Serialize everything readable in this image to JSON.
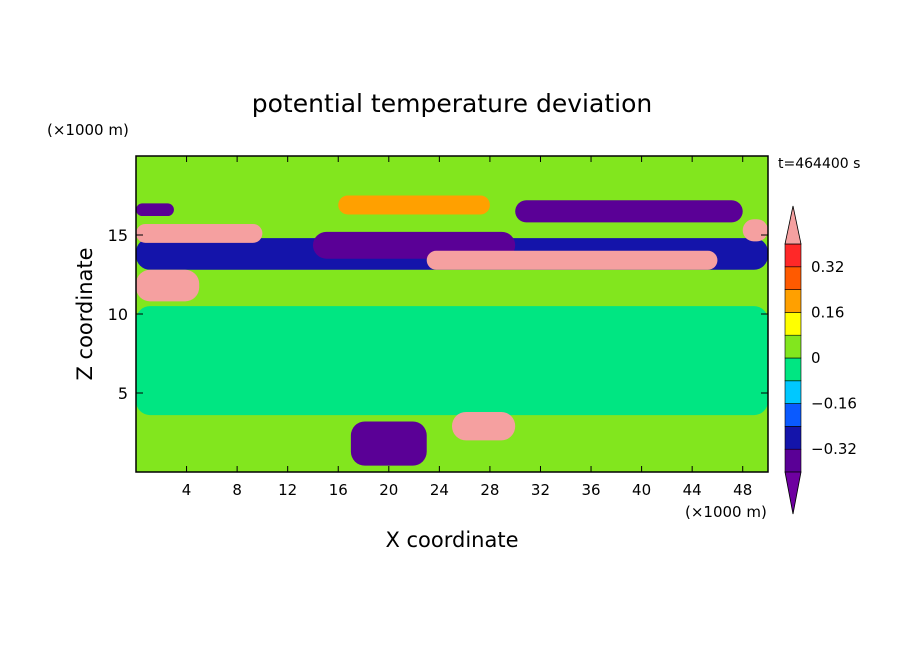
{
  "chart_data": {
    "type": "heatmap",
    "title": "potential temperature deviation",
    "time_label": "t=464400 s",
    "xlabel": "X coordinate",
    "ylabel": "Z coordinate",
    "x_unit": "(×1000 m)",
    "y_unit": "(×1000 m)",
    "xlim": [
      0,
      50
    ],
    "ylim": [
      0,
      20
    ],
    "x_ticks": [
      "4",
      "8",
      "12",
      "16",
      "20",
      "24",
      "28",
      "32",
      "36",
      "40",
      "44",
      "48"
    ],
    "y_ticks": [
      "5",
      "10",
      "15"
    ],
    "colorbar": {
      "labels": [
        "0.32",
        "0.16",
        "0",
        "−0.16",
        "−0.32"
      ],
      "label_values": [
        0.32,
        0.16,
        0,
        -0.16,
        -0.32
      ],
      "levels": [
        -0.4,
        -0.32,
        -0.24,
        -0.16,
        -0.08,
        0,
        0.08,
        0.16,
        0.24,
        0.32,
        0.4
      ],
      "colors": [
        "#5a0096",
        "#1414aa",
        "#0a5aff",
        "#00c8ff",
        "#00e682",
        "#82e61e",
        "#ffff00",
        "#ffa000",
        "#ff5a00",
        "#ff2828"
      ],
      "over_color": "#f5a0a0",
      "under_color": "#6e00a0",
      "extend": "both"
    },
    "background_level": 0.05,
    "regions": [
      {
        "name": "upper-layer-green",
        "x0": 0,
        "x1": 50,
        "z0": 16.5,
        "z1": 20,
        "value": 0.05
      },
      {
        "name": "cold-band-14km",
        "x0": 0,
        "x1": 50,
        "z0": 12.8,
        "z1": 14.8,
        "value": -0.3
      },
      {
        "name": "cold-core-west-16km",
        "x0": 0,
        "x1": 3,
        "z0": 16.2,
        "z1": 17,
        "value": -0.36
      },
      {
        "name": "cold-core-east-16km",
        "x0": 30,
        "x1": 48,
        "z0": 15.8,
        "z1": 17.2,
        "value": -0.34
      },
      {
        "name": "cold-core-central",
        "x0": 14,
        "x1": 30,
        "z0": 13.5,
        "z1": 15.2,
        "value": -0.38
      },
      {
        "name": "warm-band-west-15km",
        "x0": 0,
        "x1": 10,
        "z0": 14.5,
        "z1": 15.7,
        "value": 0.45
      },
      {
        "name": "warm-band-east-13km",
        "x0": 23,
        "x1": 46,
        "z0": 12.8,
        "z1": 14,
        "value": 0.45
      },
      {
        "name": "warm-band-edge-15km",
        "x0": 48,
        "x1": 50,
        "z0": 14.6,
        "z1": 16,
        "value": 0.45
      },
      {
        "name": "warm-patch-11km",
        "x0": 0,
        "x1": 5,
        "z0": 10.8,
        "z1": 12.8,
        "value": 0.42
      },
      {
        "name": "warm-ring-17km",
        "x0": 16,
        "x1": 28,
        "z0": 16.3,
        "z1": 17.5,
        "value": 0.2
      },
      {
        "name": "mid-troposphere-cool",
        "x0": 0,
        "x1": 50,
        "z0": 3.6,
        "z1": 10.5,
        "value": -0.02
      },
      {
        "name": "boundary-layer-warm",
        "x0": 25,
        "x1": 30,
        "z0": 2,
        "z1": 3.8,
        "value": 0.45
      },
      {
        "name": "boundary-layer-cold",
        "x0": 17,
        "x1": 23,
        "z0": 0.4,
        "z1": 3.2,
        "value": -0.38
      }
    ]
  }
}
